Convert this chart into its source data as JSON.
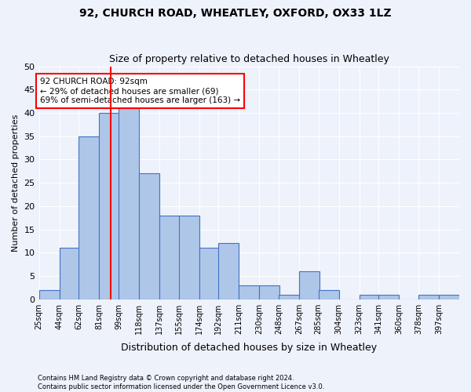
{
  "title1": "92, CHURCH ROAD, WHEATLEY, OXFORD, OX33 1LZ",
  "title2": "Size of property relative to detached houses in Wheatley",
  "xlabel": "Distribution of detached houses by size in Wheatley",
  "ylabel": "Number of detached properties",
  "bin_labels": [
    "25sqm",
    "44sqm",
    "62sqm",
    "81sqm",
    "99sqm",
    "118sqm",
    "137sqm",
    "155sqm",
    "174sqm",
    "192sqm",
    "211sqm",
    "230sqm",
    "248sqm",
    "267sqm",
    "285sqm",
    "304sqm",
    "323sqm",
    "341sqm",
    "360sqm",
    "378sqm",
    "397sqm"
  ],
  "bar_values": [
    2,
    11,
    35,
    40,
    42,
    27,
    18,
    18,
    11,
    12,
    3,
    3,
    1,
    6,
    2,
    0,
    1,
    1,
    0,
    1,
    1
  ],
  "bar_color": "#aec6e8",
  "bar_edge_color": "#4472c4",
  "vline_x": 92,
  "bin_edges": [
    25,
    44,
    62,
    81,
    99,
    118,
    137,
    155,
    174,
    192,
    211,
    230,
    248,
    267,
    285,
    304,
    323,
    341,
    360,
    378,
    397
  ],
  "ylim": [
    0,
    50
  ],
  "yticks": [
    0,
    5,
    10,
    15,
    20,
    25,
    30,
    35,
    40,
    45,
    50
  ],
  "annotation_text": "92 CHURCH ROAD: 92sqm\n← 29% of detached houses are smaller (69)\n69% of semi-detached houses are larger (163) →",
  "annotation_box_color": "white",
  "annotation_box_edgecolor": "red",
  "vline_color": "red",
  "footer1": "Contains HM Land Registry data © Crown copyright and database right 2024.",
  "footer2": "Contains public sector information licensed under the Open Government Licence v3.0.",
  "bg_color": "#eef2fb",
  "grid_color": "#ffffff"
}
